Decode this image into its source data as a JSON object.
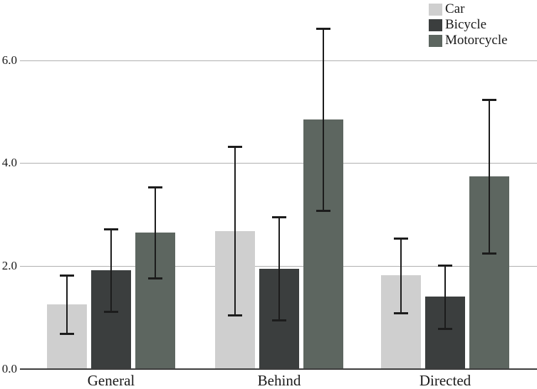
{
  "chart_data": {
    "type": "bar",
    "title": "",
    "xlabel": "",
    "ylabel": "",
    "categories": [
      "General",
      "Behind",
      "Directed"
    ],
    "series": [
      {
        "name": "Car",
        "color": "#cfcfcf",
        "values": [
          1.24,
          2.67,
          1.81
        ],
        "err_low": [
          0.68,
          1.03,
          1.08
        ],
        "err_high": [
          1.83,
          4.33,
          2.54
        ]
      },
      {
        "name": "Bicycle",
        "color": "#3b3e3e",
        "values": [
          1.91,
          1.93,
          1.39
        ],
        "err_low": [
          1.1,
          0.94,
          0.77
        ],
        "err_high": [
          2.72,
          2.95,
          2.02
        ]
      },
      {
        "name": "Motorcycle",
        "color": "#5d6660",
        "values": [
          2.64,
          4.83,
          3.73
        ],
        "err_low": [
          1.76,
          3.06,
          2.24
        ],
        "err_high": [
          3.54,
          6.61,
          5.23
        ]
      }
    ],
    "yticks": [
      "0.0",
      "2.0",
      "4.0",
      "6.0"
    ],
    "ytick_values": [
      0,
      2,
      4,
      6
    ],
    "ylim": [
      0,
      7.2
    ],
    "grid": true,
    "error_bars": true,
    "legend_position": "top-right"
  },
  "colors": {
    "background": "#ffffff",
    "gridline": "#b0b0b0",
    "axis": "#3d3d3d",
    "error_bar": "#1c1c1c",
    "text": "#1a1a1a"
  }
}
